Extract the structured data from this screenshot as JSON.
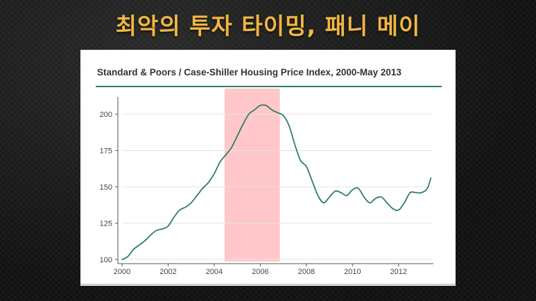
{
  "slide": {
    "title": "최악의 투자 타이밍, 패니 메이"
  },
  "colors": {
    "title": "#f1b742",
    "line": "#2e7d66",
    "highlight": "#ffc7c9",
    "rule": "#2e7d66"
  },
  "chart_data": {
    "type": "line",
    "title": "Standard & Poors / Case-Shiller Housing Price Index, 2000-May 2013",
    "xlabel": "",
    "ylabel": "",
    "xlim": [
      2000,
      2013.45
    ],
    "ylim": [
      100,
      210
    ],
    "xticks": [
      "2000",
      "2002",
      "2004",
      "2006",
      "2008",
      "2010",
      "2012"
    ],
    "yticks": [
      "100",
      "125",
      "150",
      "175",
      "200"
    ],
    "grid": "horizontal",
    "highlight_range": [
      2004.45,
      2006.85
    ],
    "series": [
      {
        "x": [
          2000.0,
          2000.25,
          2000.5,
          2000.75,
          2001.0,
          2001.25,
          2001.5,
          2001.75,
          2002.0,
          2002.25,
          2002.5,
          2002.75,
          2003.0,
          2003.25,
          2003.5,
          2003.75,
          2004.0,
          2004.25,
          2004.5,
          2004.75,
          2005.0,
          2005.25,
          2005.5,
          2005.75,
          2006.0,
          2006.25,
          2006.5,
          2006.75,
          2007.0,
          2007.25,
          2007.5,
          2007.75,
          2008.0,
          2008.25,
          2008.5,
          2008.75,
          2009.0,
          2009.25,
          2009.5,
          2009.75,
          2010.0,
          2010.25,
          2010.5,
          2010.75,
          2011.0,
          2011.25,
          2011.5,
          2011.75,
          2012.0,
          2012.25,
          2012.5,
          2012.75,
          2013.0,
          2013.25,
          2013.4
        ],
        "y": [
          100,
          102,
          107,
          110,
          113,
          117,
          120,
          121,
          123,
          129,
          134,
          136,
          139,
          144,
          149,
          153,
          159,
          167,
          172,
          177,
          185,
          193,
          200,
          203,
          206,
          206,
          203,
          201,
          199,
          192,
          179,
          168,
          164,
          154,
          144,
          139,
          143,
          147,
          146,
          144,
          148,
          149,
          143,
          139,
          142,
          143,
          139,
          135,
          134,
          139,
          146,
          146,
          146,
          149,
          156
        ]
      }
    ]
  }
}
